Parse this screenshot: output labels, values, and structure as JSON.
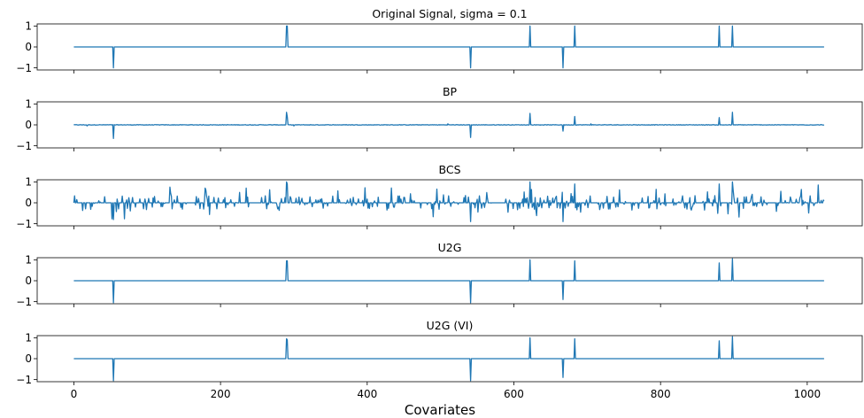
{
  "chart_data": {
    "type": "line",
    "xlabel": "Covariates",
    "xlim": [
      -50,
      1075
    ],
    "x_ticks": [
      "0",
      "200",
      "400",
      "600",
      "800",
      "1000"
    ],
    "y_ticks": [
      "1",
      "0",
      "−1"
    ],
    "ylim": [
      -1.1,
      1.1
    ],
    "n_points": 1024,
    "color": "#1f77b4",
    "panels": [
      {
        "title": "Original Signal, sigma = 0.1",
        "spikes": [
          [
            54,
            -1.0
          ],
          [
            290,
            1.0
          ],
          [
            291,
            1.0
          ],
          [
            541,
            -1.0
          ],
          [
            622,
            1.0
          ],
          [
            667,
            -1.0
          ],
          [
            683,
            1.0
          ],
          [
            880,
            1.0
          ],
          [
            898,
            1.0
          ]
        ],
        "noise": 0
      },
      {
        "title": "BP",
        "spikes": [
          [
            54,
            -0.65
          ],
          [
            290,
            0.6
          ],
          [
            291,
            0.4
          ],
          [
            541,
            -0.6
          ],
          [
            622,
            0.55
          ],
          [
            667,
            -0.3
          ],
          [
            683,
            0.4
          ],
          [
            880,
            0.35
          ],
          [
            898,
            0.6
          ],
          [
            18,
            -0.05
          ],
          [
            300,
            -0.05
          ],
          [
            510,
            0.05
          ],
          [
            705,
            0.05
          ]
        ],
        "noise": 0.012
      },
      {
        "title": "BCS",
        "spikes": [
          [
            54,
            -0.8
          ],
          [
            290,
            1.0
          ],
          [
            291,
            0.9
          ],
          [
            541,
            -0.9
          ],
          [
            622,
            1.0
          ],
          [
            667,
            -0.9
          ],
          [
            683,
            0.9
          ],
          [
            880,
            0.9
          ],
          [
            898,
            1.0
          ],
          [
            1015,
            0.85
          ]
        ],
        "noise": 0.35
      },
      {
        "title": "U2G",
        "spikes": [
          [
            54,
            -1.05
          ],
          [
            290,
            0.95
          ],
          [
            291,
            0.95
          ],
          [
            541,
            -1.05
          ],
          [
            622,
            1.0
          ],
          [
            667,
            -0.9
          ],
          [
            683,
            0.95
          ],
          [
            880,
            0.85
          ],
          [
            898,
            1.05
          ]
        ],
        "noise": 0
      },
      {
        "title": "U2G (VI)",
        "spikes": [
          [
            54,
            -1.05
          ],
          [
            290,
            0.95
          ],
          [
            291,
            0.9
          ],
          [
            541,
            -1.05
          ],
          [
            622,
            1.0
          ],
          [
            667,
            -0.9
          ],
          [
            683,
            0.95
          ],
          [
            880,
            0.85
          ],
          [
            898,
            1.05
          ]
        ],
        "noise": 0
      }
    ]
  }
}
